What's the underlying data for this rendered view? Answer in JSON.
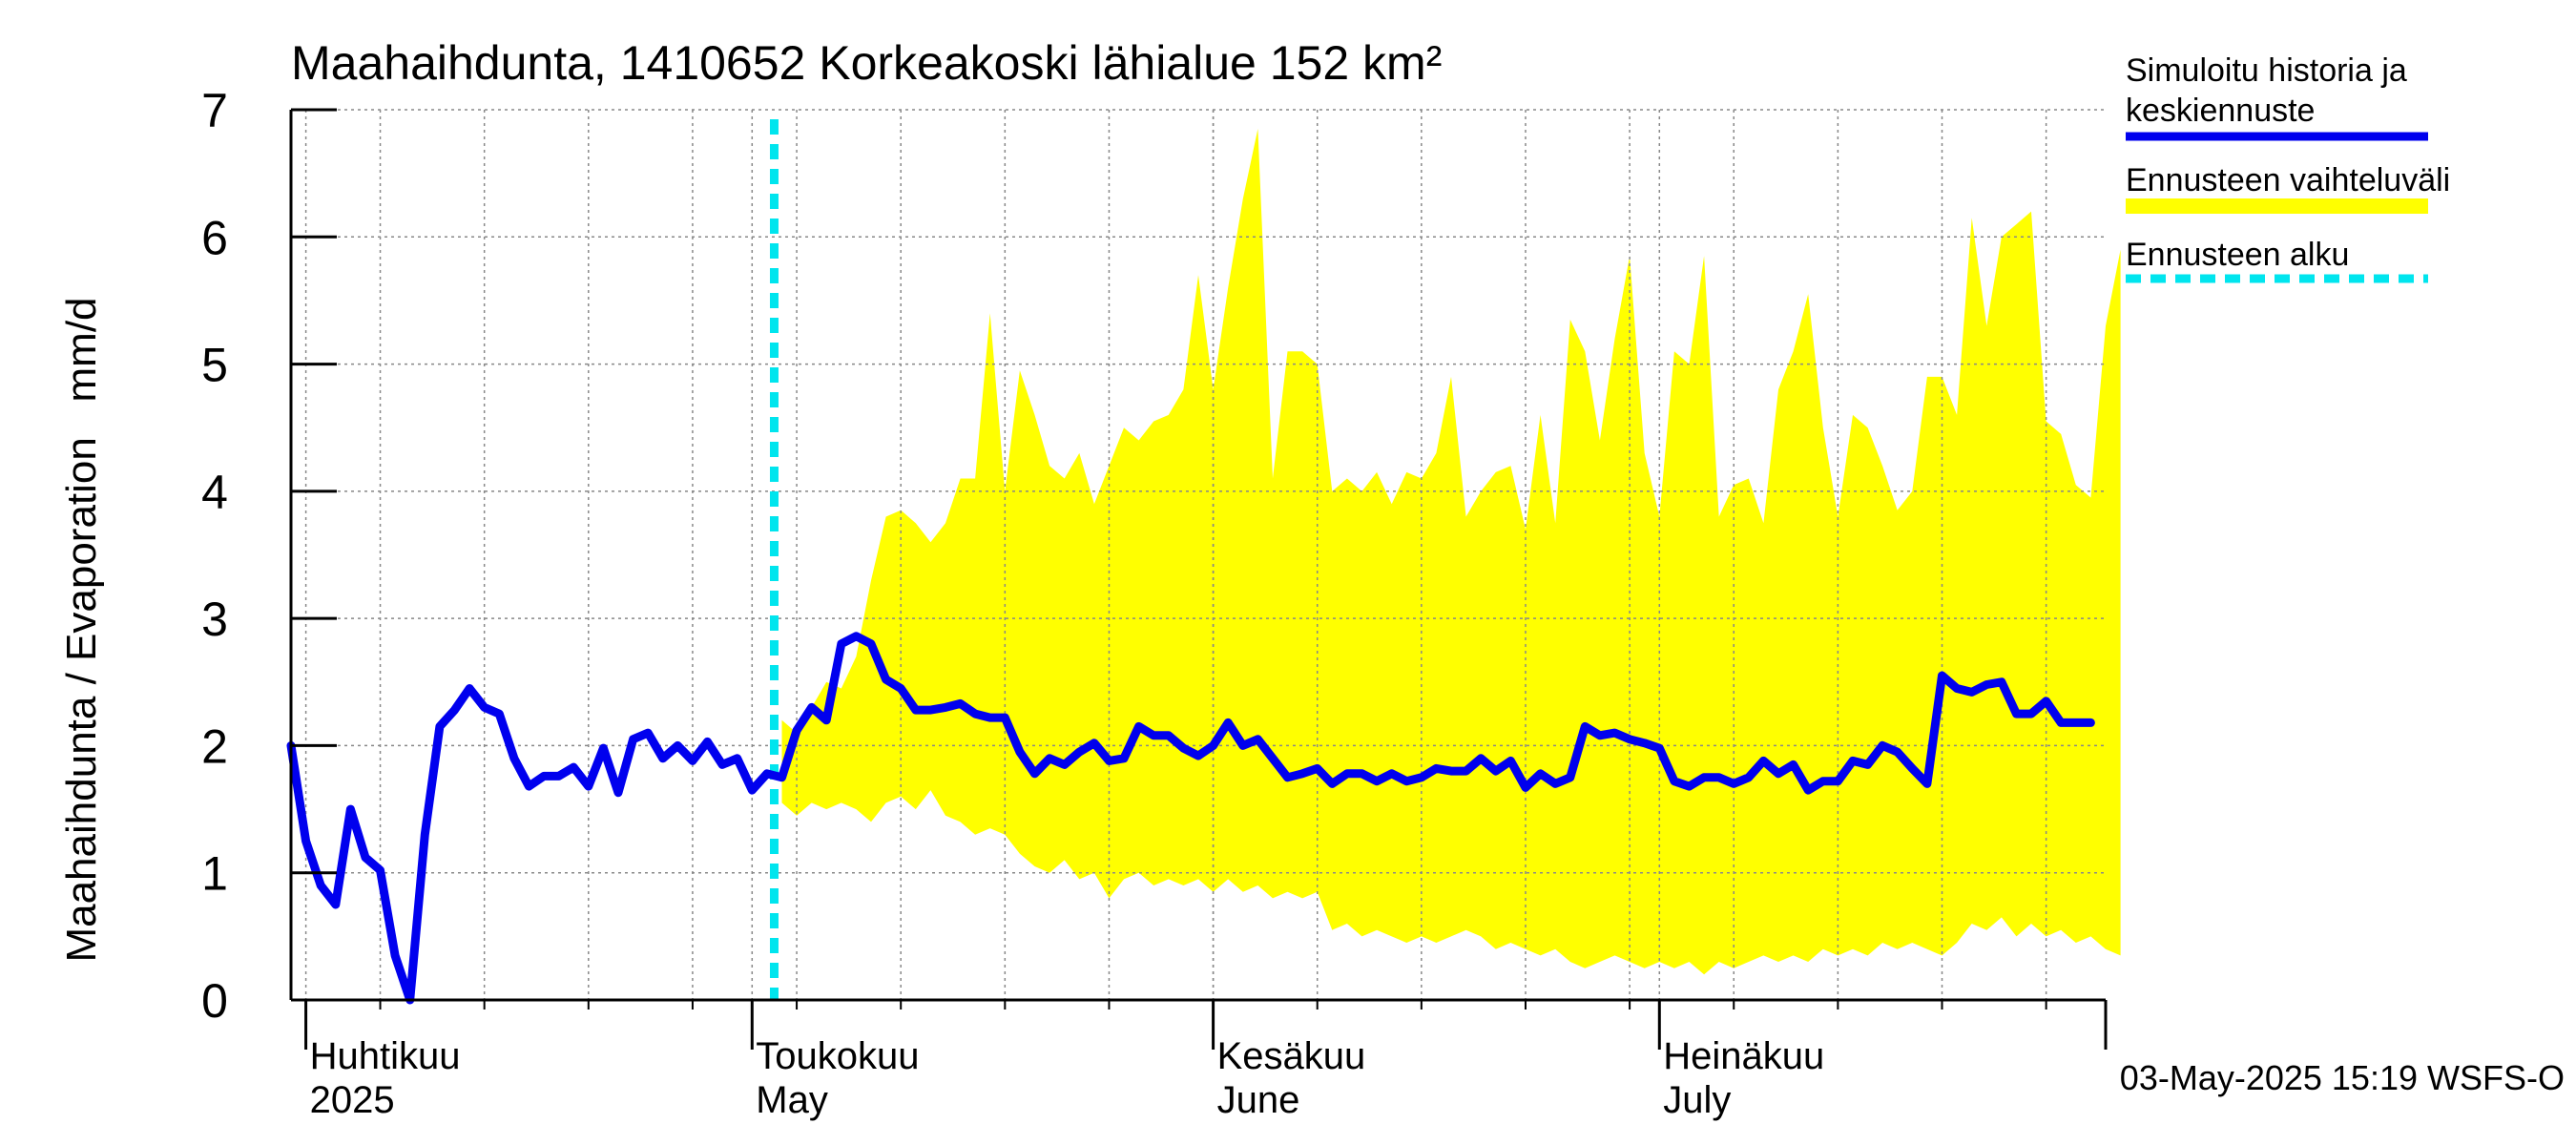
{
  "chart_data": {
    "type": "area",
    "title": "Maahaihdunta, 1410652 Korkeakoski lähialue 152 km²",
    "ylabel": "Maahaihdunta / Evaporation   mm/d",
    "ylim": [
      0,
      7
    ],
    "yticks": [
      "0",
      "1",
      "2",
      "3",
      "4",
      "5",
      "6",
      "7"
    ],
    "xlim": [
      "2025-03-31",
      "2025-07-31"
    ],
    "grid": true,
    "legend_position": "right",
    "months": [
      {
        "start": "2025-04-01",
        "fi": "Huhtikuu",
        "en": "2025"
      },
      {
        "start": "2025-05-01",
        "fi": "Toukokuu",
        "en": "May"
      },
      {
        "start": "2025-06-01",
        "fi": "Kesäkuu",
        "en": "June"
      },
      {
        "start": "2025-07-01",
        "fi": "Heinäkuu",
        "en": "July"
      }
    ],
    "forecast_start": "2025-05-03",
    "timestamp": "03-May-2025 15:19 WSFS-O",
    "legend": [
      {
        "label": "Simuloitu historia ja",
        "label2": "keskiennuste",
        "style": "line"
      },
      {
        "label": "Ennusteen vaihteluväli",
        "style": "band"
      },
      {
        "label": "Ennusteen alku",
        "style": "dashed"
      }
    ],
    "colors": {
      "history": "#0000ee",
      "band": "#ffff00",
      "forecast_start": "#00e5ee",
      "axis": "#000000",
      "grid": "#888888"
    },
    "series": [
      {
        "name": "Simuloitu historia ja keskiennuste",
        "start": "2025-03-31",
        "values": [
          2.0,
          1.25,
          0.9,
          0.75,
          1.5,
          1.12,
          1.02,
          0.35,
          0.0,
          1.3,
          2.15,
          2.28,
          2.45,
          2.3,
          2.25,
          1.9,
          1.68,
          1.76,
          1.76,
          1.83,
          1.68,
          1.98,
          1.63,
          2.05,
          2.1,
          1.9,
          2.0,
          1.88,
          2.03,
          1.85,
          1.9,
          1.65,
          1.78,
          1.75,
          2.12,
          2.3,
          2.2,
          2.8,
          2.86,
          2.8,
          2.52,
          2.45,
          2.28,
          2.28,
          2.3,
          2.33,
          2.25,
          2.22,
          2.22,
          1.95,
          1.78,
          1.9,
          1.85,
          1.95,
          2.02,
          1.88,
          1.9,
          2.15,
          2.08,
          2.08,
          1.98,
          1.92,
          2.0,
          2.18,
          2.0,
          2.05,
          1.9,
          1.75,
          1.78,
          1.82,
          1.7,
          1.78,
          1.78,
          1.72,
          1.78,
          1.72,
          1.75,
          1.82,
          1.8,
          1.8,
          1.9,
          1.8,
          1.88,
          1.67,
          1.78,
          1.7,
          1.75,
          2.15,
          2.08,
          2.1,
          2.05,
          2.02,
          1.98,
          1.72,
          1.68,
          1.75,
          1.75,
          1.7,
          1.75,
          1.88,
          1.78,
          1.85,
          1.65,
          1.72,
          1.72,
          1.88,
          1.85,
          2.0,
          1.95,
          1.82,
          1.7,
          2.55,
          2.45,
          2.42,
          2.48,
          2.5,
          2.25,
          2.25,
          2.35,
          2.18,
          2.18,
          2.18
        ]
      },
      {
        "name": "Ennusteen vaihteluväli upper",
        "start": "2025-05-03",
        "values": [
          2.2,
          2.1,
          2.3,
          2.5,
          2.45,
          2.7,
          3.3,
          3.8,
          3.85,
          3.75,
          3.6,
          3.75,
          4.1,
          4.1,
          5.4,
          4.0,
          4.95,
          4.6,
          4.2,
          4.1,
          4.3,
          3.9,
          4.2,
          4.5,
          4.4,
          4.55,
          4.6,
          4.8,
          5.7,
          4.8,
          5.6,
          6.3,
          6.85,
          4.1,
          5.1,
          5.1,
          5.0,
          4.0,
          4.1,
          4.0,
          4.15,
          3.9,
          4.15,
          4.1,
          4.3,
          4.9,
          3.8,
          4.0,
          4.15,
          4.2,
          3.7,
          4.6,
          3.75,
          5.35,
          5.1,
          4.4,
          5.2,
          5.85,
          4.3,
          3.8,
          5.1,
          5.0,
          5.85,
          3.8,
          4.05,
          4.1,
          3.75,
          4.8,
          5.1,
          5.55,
          4.5,
          3.8,
          4.6,
          4.5,
          4.2,
          3.85,
          4.0,
          4.9,
          4.9,
          4.6,
          6.15,
          5.3,
          6.0,
          6.1,
          6.2,
          4.55,
          4.45,
          4.05,
          3.95,
          5.3,
          5.9
        ]
      },
      {
        "name": "Ennusteen vaihteluväli lower",
        "start": "2025-05-03",
        "values": [
          1.55,
          1.45,
          1.55,
          1.5,
          1.55,
          1.5,
          1.4,
          1.55,
          1.6,
          1.5,
          1.65,
          1.45,
          1.4,
          1.3,
          1.35,
          1.3,
          1.15,
          1.05,
          1.0,
          1.1,
          0.95,
          1.0,
          0.8,
          0.95,
          1.0,
          0.9,
          0.95,
          0.9,
          0.95,
          0.85,
          0.95,
          0.85,
          0.9,
          0.8,
          0.85,
          0.8,
          0.85,
          0.55,
          0.6,
          0.5,
          0.55,
          0.5,
          0.45,
          0.5,
          0.45,
          0.5,
          0.55,
          0.5,
          0.4,
          0.45,
          0.4,
          0.35,
          0.4,
          0.3,
          0.25,
          0.3,
          0.35,
          0.3,
          0.25,
          0.3,
          0.25,
          0.3,
          0.2,
          0.3,
          0.25,
          0.3,
          0.35,
          0.3,
          0.35,
          0.3,
          0.4,
          0.35,
          0.4,
          0.35,
          0.45,
          0.4,
          0.45,
          0.4,
          0.35,
          0.45,
          0.6,
          0.55,
          0.65,
          0.5,
          0.6,
          0.5,
          0.55,
          0.45,
          0.5,
          0.4,
          0.35
        ]
      }
    ]
  }
}
